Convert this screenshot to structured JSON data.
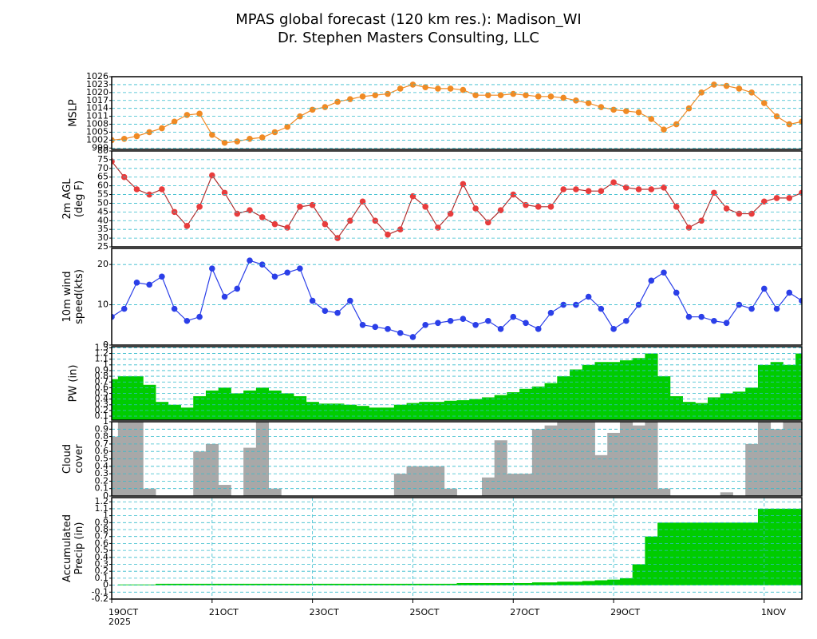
{
  "title_lines": [
    "MPAS global forecast (120 km res.): Madison_WI",
    "Dr. Stephen Masters Consulting, LLC"
  ],
  "time": {
    "x": [
      0,
      0.25,
      0.5,
      0.75,
      1,
      1.25,
      1.5,
      1.75,
      2,
      2.25,
      2.5,
      2.75,
      3,
      3.25,
      3.5,
      3.75,
      4,
      4.25,
      4.5,
      4.75,
      5,
      5.25,
      5.5,
      5.75,
      6,
      6.25,
      6.5,
      6.75,
      7,
      7.25,
      7.5,
      7.75,
      8,
      8.25,
      8.5,
      8.75,
      9,
      9.25,
      9.5,
      9.75,
      10,
      10.25,
      10.5,
      10.75,
      11,
      11.25,
      11.5,
      11.75,
      12,
      12.25,
      12.5,
      12.75,
      13,
      13.25,
      13.5,
      13.75
    ],
    "xlim": [
      0,
      13.75
    ],
    "xticks": [
      {
        "value": 0,
        "label": "19OCT"
      },
      {
        "value": 2,
        "label": "21OCT"
      },
      {
        "value": 4,
        "label": "23OCT"
      },
      {
        "value": 6,
        "label": "25OCT"
      },
      {
        "value": 8,
        "label": "27OCT"
      },
      {
        "value": 10,
        "label": "29OCT"
      },
      {
        "value": 13,
        "label": "1NOV"
      }
    ],
    "year_label": "2025"
  },
  "chart_data": [
    {
      "type": "line",
      "ylabel": [
        "MSLP"
      ],
      "color": "#f08a24",
      "line_color": "#f08a24",
      "values": [
        1002,
        1002.5,
        1003.5,
        1005,
        1006.5,
        1009,
        1011.5,
        1012,
        1004,
        1001,
        1001.5,
        1002.5,
        1003,
        1005,
        1007,
        1011,
        1013.5,
        1014.5,
        1016.5,
        1017.5,
        1018.5,
        1019,
        1019.5,
        1021.5,
        1023,
        1022,
        1021.5,
        1021.5,
        1021,
        1019,
        1019,
        1019,
        1019.5,
        1019,
        1018.5,
        1018.5,
        1018,
        1017,
        1016,
        1014.5,
        1013.5,
        1013,
        1012.5,
        1010,
        1006,
        1008,
        1014,
        1020,
        1023,
        1022.5,
        1021.5,
        1020,
        1016,
        1011,
        1008,
        1009
      ],
      "ylim": [
        998.5,
        1026
      ],
      "yticks": [
        999,
        1002,
        1005,
        1008,
        1011,
        1014,
        1017,
        1020,
        1023,
        1026
      ],
      "grid": true
    },
    {
      "type": "line",
      "ylabel": [
        "2m AGL",
        "(deg F)"
      ],
      "color": "#e83c3c",
      "line_color": "#b03030",
      "values": [
        74,
        65,
        58,
        55,
        58,
        45,
        37,
        48,
        66,
        56,
        44,
        46,
        42,
        38,
        36,
        48,
        49,
        38,
        30,
        40,
        51,
        40,
        32,
        35,
        54,
        48,
        36,
        44,
        61,
        47,
        39,
        46,
        55,
        49,
        48,
        48,
        58,
        58,
        57,
        57,
        62,
        59,
        58,
        58,
        59,
        48,
        36,
        40,
        56,
        47,
        44,
        44,
        51,
        53,
        53,
        56
      ],
      "ylim": [
        25,
        80
      ],
      "yticks": [
        25,
        30,
        35,
        40,
        45,
        50,
        55,
        60,
        65,
        70,
        75,
        80
      ],
      "grid": true
    },
    {
      "type": "line",
      "ylabel": [
        "10m wind",
        "speed(kts)"
      ],
      "color": "#2b3fe8",
      "line_color": "#2b3fe8",
      "values": [
        7,
        9,
        15.5,
        15,
        17,
        9,
        6,
        7,
        19,
        12,
        14,
        21,
        20,
        17,
        18,
        19,
        11,
        8.5,
        8,
        11,
        5,
        4.5,
        4,
        3,
        2,
        5,
        5.5,
        6,
        6.5,
        5,
        6,
        4,
        7,
        5.5,
        4,
        8,
        10,
        10,
        12,
        9,
        4,
        6,
        10,
        16,
        18,
        13,
        7,
        7,
        6,
        5.5,
        10,
        9,
        14,
        9,
        13,
        11
      ],
      "ylim": [
        0,
        24
      ],
      "yticks": [
        0,
        10,
        20
      ],
      "grid": true
    },
    {
      "type": "bar",
      "ylabel": [
        "PW (in)"
      ],
      "color": "#00cc00",
      "values": [
        0.75,
        0.8,
        0.8,
        0.65,
        0.35,
        0.3,
        0.25,
        0.45,
        0.55,
        0.6,
        0.5,
        0.55,
        0.6,
        0.55,
        0.5,
        0.45,
        0.35,
        0.32,
        0.32,
        0.3,
        0.28,
        0.25,
        0.25,
        0.3,
        0.33,
        0.35,
        0.35,
        0.37,
        0.38,
        0.4,
        0.43,
        0.47,
        0.52,
        0.58,
        0.62,
        0.68,
        0.8,
        0.92,
        1,
        1.05,
        1.05,
        1.08,
        1.12,
        1.2,
        0.8,
        0.45,
        0.35,
        0.33,
        0.43,
        0.5,
        0.53,
        0.6,
        1,
        1.05,
        1,
        1.2
      ],
      "ylim": [
        0.03,
        1.32
      ],
      "yticks": [
        0.1,
        0.2,
        0.3,
        0.4,
        0.5,
        0.6,
        0.7,
        0.8,
        0.9,
        1,
        1.1,
        1.2,
        1.3
      ],
      "grid": true
    },
    {
      "type": "bar",
      "ylabel": [
        "Cloud",
        "cover"
      ],
      "color": "#a8a8a8",
      "values": [
        0.8,
        1,
        1,
        0.1,
        0,
        0,
        0,
        0.6,
        0.7,
        0.15,
        0,
        0.65,
        1,
        0.1,
        0,
        0,
        0,
        0,
        0,
        0,
        0,
        0,
        0,
        0.3,
        0.4,
        0.4,
        0.4,
        0.1,
        0,
        0,
        0.25,
        0.75,
        0.3,
        0.3,
        0.9,
        0.95,
        1,
        1,
        1,
        0.55,
        0.85,
        1,
        0.95,
        1,
        0.1,
        0,
        0,
        0,
        0,
        0.05,
        0,
        0.7,
        1,
        0.9,
        1,
        1
      ],
      "ylim": [
        0,
        1
      ],
      "yticks": [
        0,
        0.1,
        0.2,
        0.3,
        0.4,
        0.5,
        0.6,
        0.7,
        0.8,
        0.9,
        1
      ],
      "grid": true
    },
    {
      "type": "bar",
      "ylabel": [
        "Accumulated",
        "Precip (in)"
      ],
      "color": "#00cc00",
      "values": [
        0,
        0.01,
        0.01,
        0.01,
        0.02,
        0.02,
        0.02,
        0.02,
        0.02,
        0.02,
        0.02,
        0.02,
        0.02,
        0.02,
        0.02,
        0.02,
        0.02,
        0.02,
        0.02,
        0.02,
        0.02,
        0.02,
        0.02,
        0.02,
        0.02,
        0.02,
        0.02,
        0.02,
        0.03,
        0.03,
        0.03,
        0.03,
        0.03,
        0.03,
        0.04,
        0.04,
        0.05,
        0.05,
        0.06,
        0.07,
        0.08,
        0.1,
        0.3,
        0.7,
        0.9,
        0.9,
        0.9,
        0.9,
        0.9,
        0.9,
        0.9,
        0.9,
        1.1,
        1.1,
        1.1,
        1.1
      ],
      "ylim": [
        -0.2,
        1.26
      ],
      "yticks": [
        -0.2,
        -0.1,
        0,
        0.1,
        0.2,
        0.3,
        0.4,
        0.5,
        0.6,
        0.7,
        0.8,
        0.9,
        1,
        1.1,
        1.2
      ],
      "grid": true,
      "xgrid": true
    }
  ]
}
